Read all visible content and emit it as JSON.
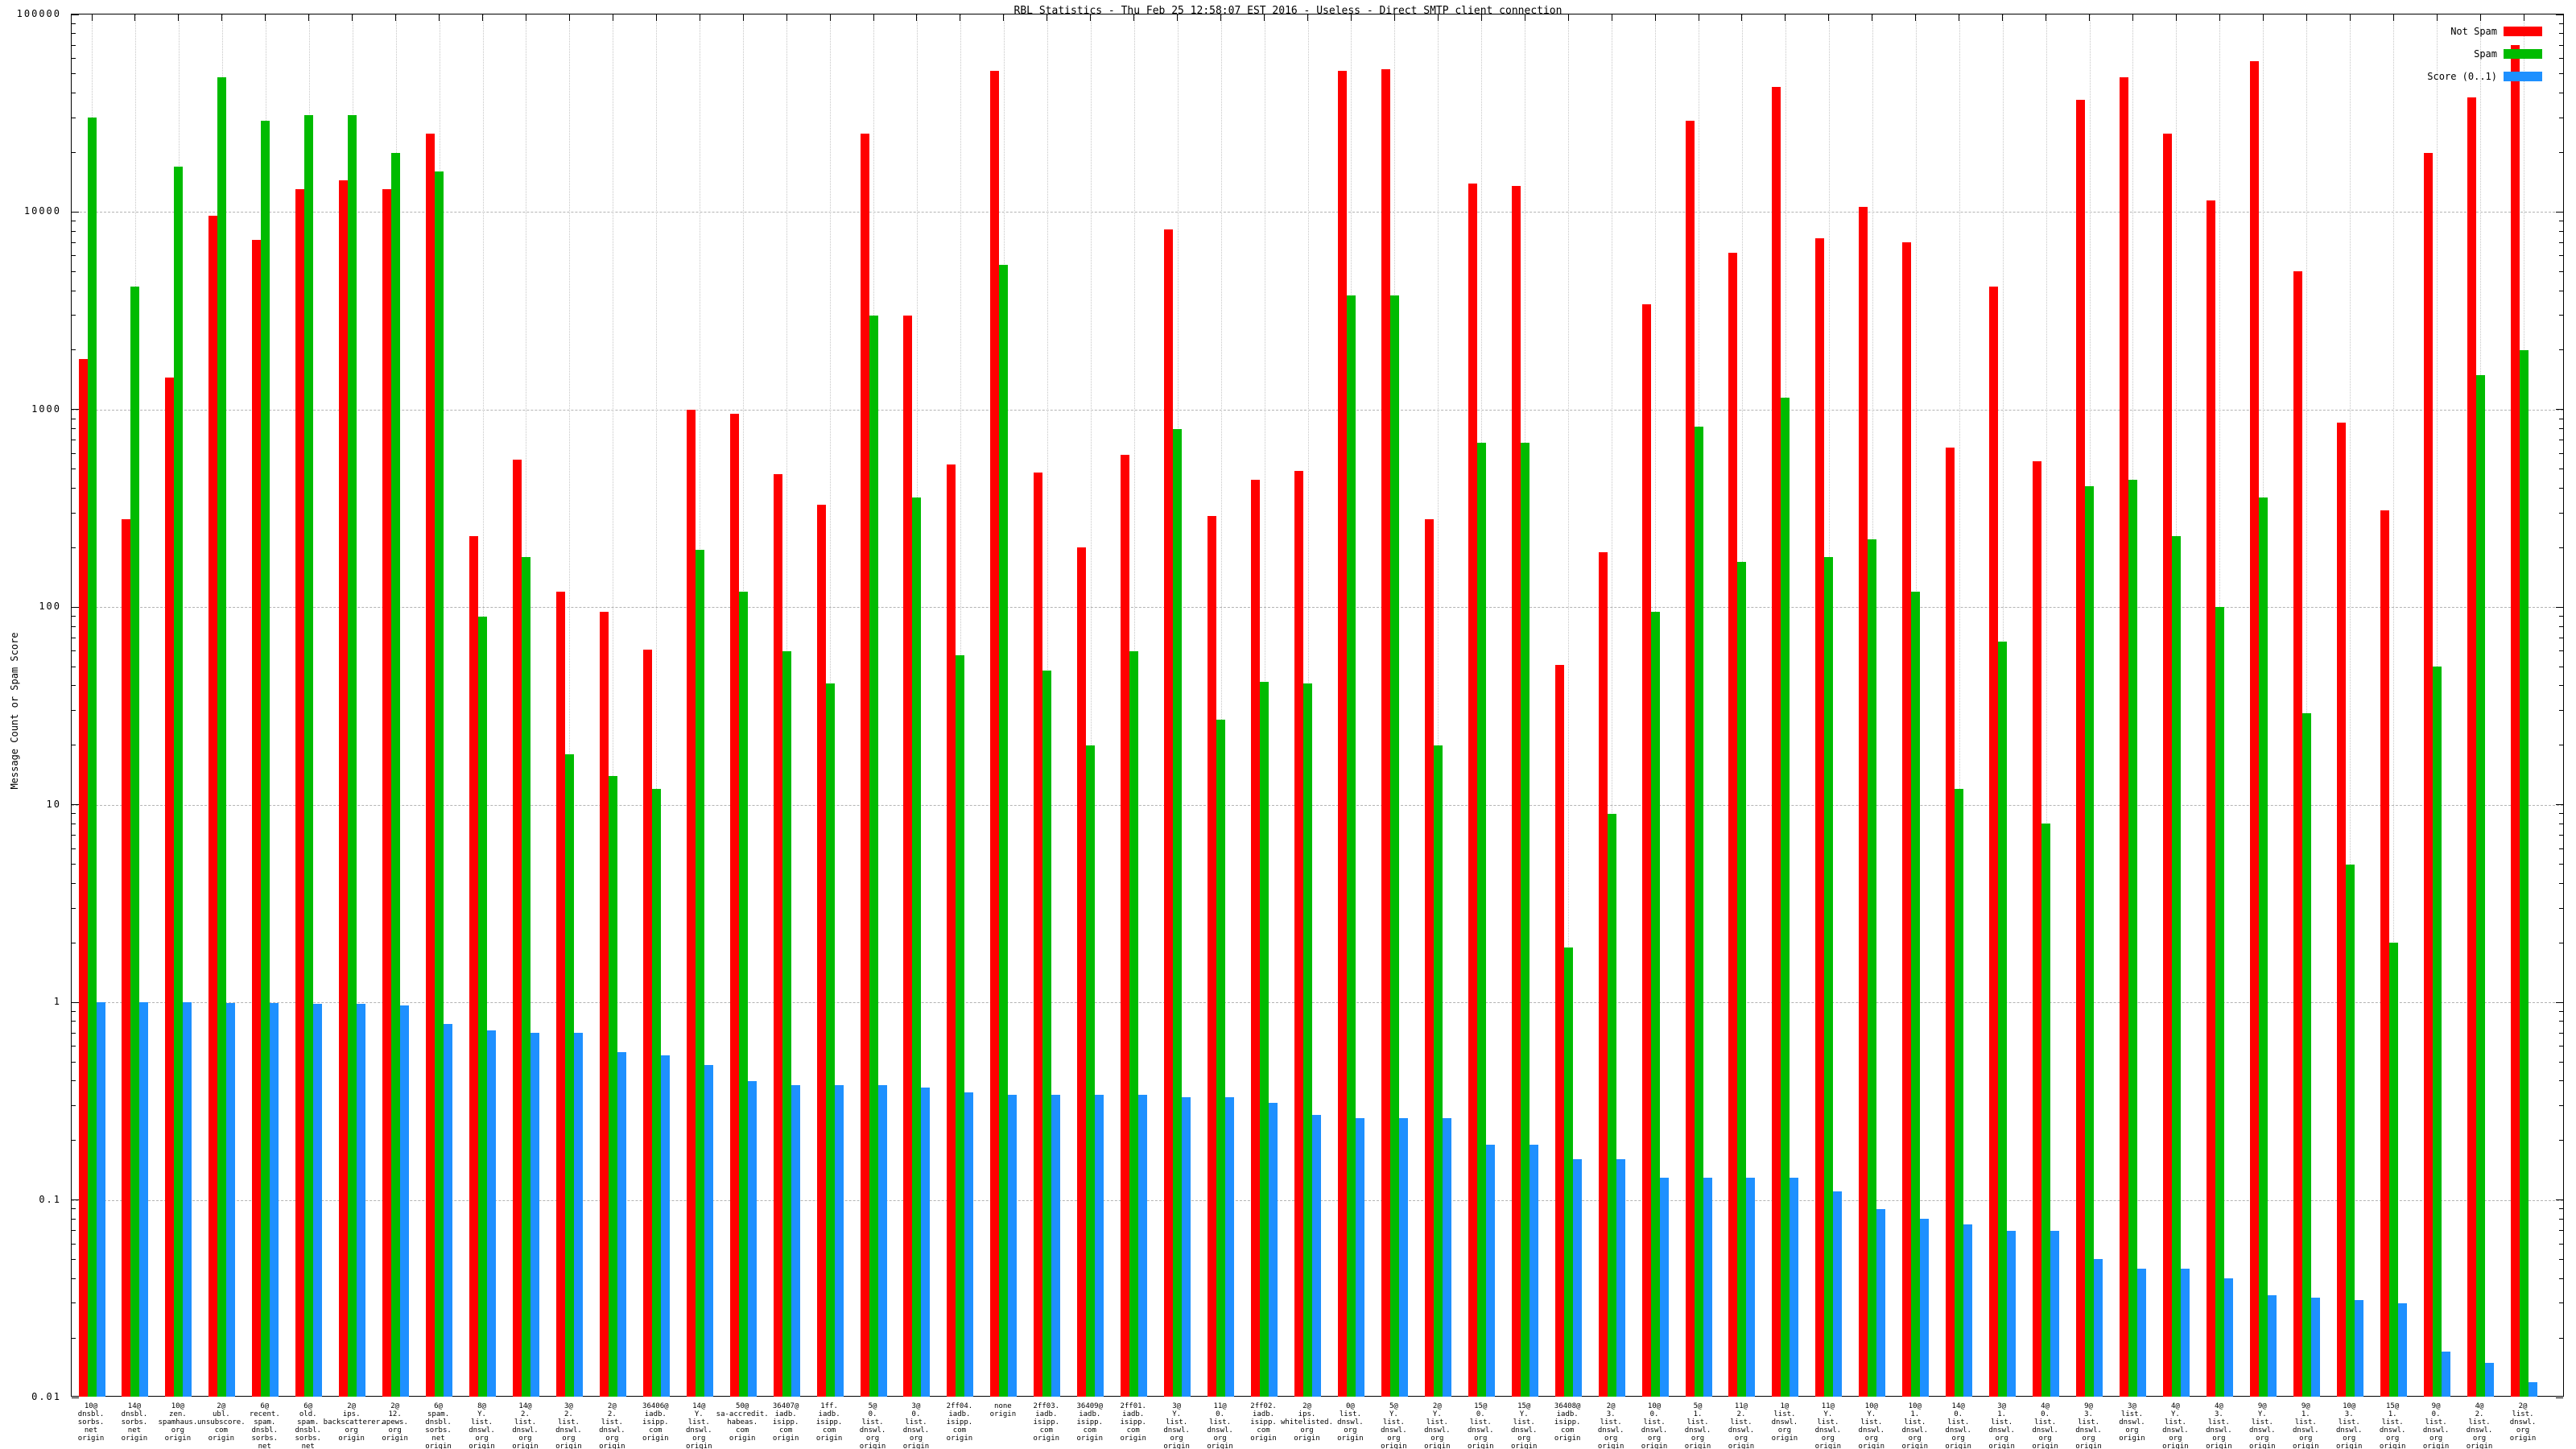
{
  "title": "RBL Statistics - Thu Feb 25 12:58:07 EST 2016 - Useless - Direct SMTP client connection",
  "y_axis": {
    "label": "Message Count or Spam Score",
    "ticks": [
      "100000",
      "10000",
      "1000",
      "100",
      "10",
      "1",
      "0.1",
      "0.01"
    ]
  },
  "legend": [
    {
      "label": "Not Spam",
      "color": "#ff0000"
    },
    {
      "label": "Spam",
      "color": "#00bb00"
    },
    {
      "label": "Score (0..1)",
      "color": "#1e90ff"
    }
  ],
  "chart_data": {
    "type": "bar",
    "scale": "log",
    "ylim": [
      0.01,
      100000
    ],
    "grid": "on",
    "legend_position": "top-right",
    "title": "RBL Statistics - Thu Feb 25 12:58:07 EST 2016 - Useless - Direct SMTP client connection",
    "ylabel": "Message Count or Spam Score",
    "categories": [
      [
        "10@",
        "dnsbl.",
        "sorbs.",
        "net",
        "origin"
      ],
      [
        "14@",
        "dnsbl.",
        "sorbs.",
        "net",
        "origin"
      ],
      [
        "10@",
        "zen.",
        "spamhaus.",
        "org",
        "origin"
      ],
      [
        "2@",
        "ubl.",
        "unsubscore.",
        "com",
        "origin"
      ],
      [
        "6@",
        "recent.",
        "spam.",
        "dnsbl.",
        "sorbs.",
        "net",
        "origin"
      ],
      [
        "6@",
        "old.",
        "spam.",
        "dnsbl.",
        "sorbs.",
        "net",
        "origin"
      ],
      [
        "2@",
        "ips.",
        "backscatterer.",
        "org",
        "origin"
      ],
      [
        "2@",
        "12.",
        "apews.",
        "org",
        "origin"
      ],
      [
        "6@",
        "spam.",
        "dnsbl.",
        "sorbs.",
        "net",
        "origin"
      ],
      [
        "8@",
        "Y.",
        "list.",
        "dnswl.",
        "org",
        "origin"
      ],
      [
        "14@",
        "2.",
        "list.",
        "dnswl.",
        "org",
        "origin"
      ],
      [
        "3@",
        "2.",
        "list.",
        "dnswl.",
        "org",
        "origin"
      ],
      [
        "2@",
        "2.",
        "list.",
        "dnswl.",
        "org",
        "origin"
      ],
      [
        "36406@",
        "iadb.",
        "isipp.",
        "com",
        "origin"
      ],
      [
        "14@",
        "Y.",
        "list.",
        "dnswl.",
        "org",
        "origin"
      ],
      [
        "50@",
        "sa-accredit.",
        "habeas.",
        "com",
        "origin"
      ],
      [
        "36407@",
        "iadb.",
        "isipp.",
        "com",
        "origin"
      ],
      [
        "1ff.",
        "iadb.",
        "isipp.",
        "com",
        "origin"
      ],
      [
        "5@",
        "0.",
        "list.",
        "dnswl.",
        "org",
        "origin"
      ],
      [
        "3@",
        "0.",
        "list.",
        "dnswl.",
        "org",
        "origin"
      ],
      [
        "2ff04.",
        "iadb.",
        "isipp.",
        "com",
        "origin"
      ],
      [
        "none",
        "origin"
      ],
      [
        "2ff03.",
        "iadb.",
        "isipp.",
        "com",
        "origin"
      ],
      [
        "36409@",
        "iadb.",
        "isipp.",
        "com",
        "origin"
      ],
      [
        "2ff01.",
        "iadb.",
        "isipp.",
        "com",
        "origin"
      ],
      [
        "3@",
        "Y.",
        "list.",
        "dnswl.",
        "org",
        "origin"
      ],
      [
        "11@",
        "0.",
        "list.",
        "dnswl.",
        "org",
        "origin"
      ],
      [
        "2ff02.",
        "iadb.",
        "isipp.",
        "com",
        "origin"
      ],
      [
        "2@",
        "ips.",
        "whitelisted.",
        "org",
        "origin"
      ],
      [
        "0@",
        "list.",
        "dnswl.",
        "org",
        "origin"
      ],
      [
        "5@",
        "Y.",
        "list.",
        "dnswl.",
        "org",
        "origin"
      ],
      [
        "2@",
        "Y.",
        "list.",
        "dnswl.",
        "org",
        "origin"
      ],
      [
        "15@",
        "0.",
        "list.",
        "dnswl.",
        "org",
        "origin"
      ],
      [
        "15@",
        "Y.",
        "list.",
        "dnswl.",
        "org",
        "origin"
      ],
      [
        "36408@",
        "iadb.",
        "isipp.",
        "com",
        "origin"
      ],
      [
        "2@",
        "3.",
        "list.",
        "dnswl.",
        "org",
        "origin"
      ],
      [
        "10@",
        "0.",
        "list.",
        "dnswl.",
        "org",
        "origin"
      ],
      [
        "5@",
        "1.",
        "list.",
        "dnswl.",
        "org",
        "origin"
      ],
      [
        "11@",
        "2.",
        "list.",
        "dnswl.",
        "org",
        "origin"
      ],
      [
        "1@",
        "list.",
        "dnswl.",
        "org",
        "origin"
      ],
      [
        "11@",
        "Y.",
        "list.",
        "dnswl.",
        "org",
        "origin"
      ],
      [
        "10@",
        "Y.",
        "list.",
        "dnswl.",
        "org",
        "origin"
      ],
      [
        "10@",
        "1.",
        "list.",
        "dnswl.",
        "org",
        "origin"
      ],
      [
        "14@",
        "0.",
        "list.",
        "dnswl.",
        "org",
        "origin"
      ],
      [
        "3@",
        "1.",
        "list.",
        "dnswl.",
        "org",
        "origin"
      ],
      [
        "4@",
        "0.",
        "list.",
        "dnswl.",
        "org",
        "origin"
      ],
      [
        "9@",
        "3.",
        "list.",
        "dnswl.",
        "org",
        "origin"
      ],
      [
        "3@",
        "list.",
        "dnswl.",
        "org",
        "origin"
      ],
      [
        "4@",
        "Y.",
        "list.",
        "dnswl.",
        "org",
        "origin"
      ],
      [
        "4@",
        "3.",
        "list.",
        "dnswl.",
        "org",
        "origin"
      ],
      [
        "9@",
        "Y.",
        "list.",
        "dnswl.",
        "org",
        "origin"
      ],
      [
        "9@",
        "1.",
        "list.",
        "dnswl.",
        "org",
        "origin"
      ],
      [
        "10@",
        "3.",
        "list.",
        "dnswl.",
        "org",
        "origin"
      ],
      [
        "15@",
        "1.",
        "list.",
        "dnswl.",
        "org",
        "origin"
      ],
      [
        "9@",
        "0.",
        "list.",
        "dnswl.",
        "org",
        "origin"
      ],
      [
        "4@",
        "2.",
        "list.",
        "dnswl.",
        "org",
        "origin"
      ],
      [
        "2@",
        "list.",
        "dnswl.",
        "org",
        "origin"
      ]
    ],
    "series": [
      {
        "name": "Not Spam",
        "color": "#ff0000",
        "values": [
          1800,
          280,
          1450,
          9600,
          7200,
          13000,
          14500,
          13000,
          25000,
          230,
          560,
          120,
          95,
          61,
          1000,
          950,
          470,
          330,
          25000,
          3000,
          530,
          52000,
          480,
          200,
          590,
          8200,
          290,
          440,
          490,
          52000,
          53000,
          280,
          14000,
          13500,
          51,
          190,
          3400,
          29000,
          6200,
          43000,
          7400,
          10600,
          7000,
          640,
          4200,
          550,
          37000,
          48000,
          25000,
          11500,
          58000,
          5000,
          860,
          310,
          20000,
          38000,
          70000
        ]
      },
      {
        "name": "Spam",
        "color": "#00bb00",
        "values": [
          30000,
          4200,
          17000,
          48000,
          29000,
          31000,
          31000,
          20000,
          16000,
          90,
          180,
          18,
          14,
          12,
          195,
          120,
          60,
          41,
          3000,
          360,
          57,
          5400,
          48,
          20,
          60,
          800,
          27,
          42,
          41,
          3800,
          3800,
          20,
          680,
          680,
          1.9,
          9,
          95,
          820,
          170,
          1150,
          180,
          220,
          120,
          12,
          67,
          8,
          410,
          440,
          230,
          100,
          360,
          29,
          5,
          2,
          50,
          1500,
          2000
        ]
      },
      {
        "name": "Score (0..1)",
        "color": "#1e90ff",
        "values": [
          1.0,
          1.0,
          1.0,
          0.99,
          0.99,
          0.98,
          0.98,
          0.96,
          0.78,
          0.72,
          0.7,
          0.7,
          0.56,
          0.54,
          0.48,
          0.4,
          0.38,
          0.38,
          0.38,
          0.37,
          0.35,
          0.34,
          0.34,
          0.34,
          0.34,
          0.33,
          0.33,
          0.31,
          0.27,
          0.26,
          0.26,
          0.26,
          0.19,
          0.19,
          0.16,
          0.16,
          0.13,
          0.13,
          0.13,
          0.13,
          0.11,
          0.09,
          0.08,
          0.075,
          0.07,
          0.07,
          0.05,
          0.045,
          0.045,
          0.04,
          0.033,
          0.032,
          0.031,
          0.03,
          0.017,
          0.015,
          0.012
        ]
      }
    ]
  }
}
